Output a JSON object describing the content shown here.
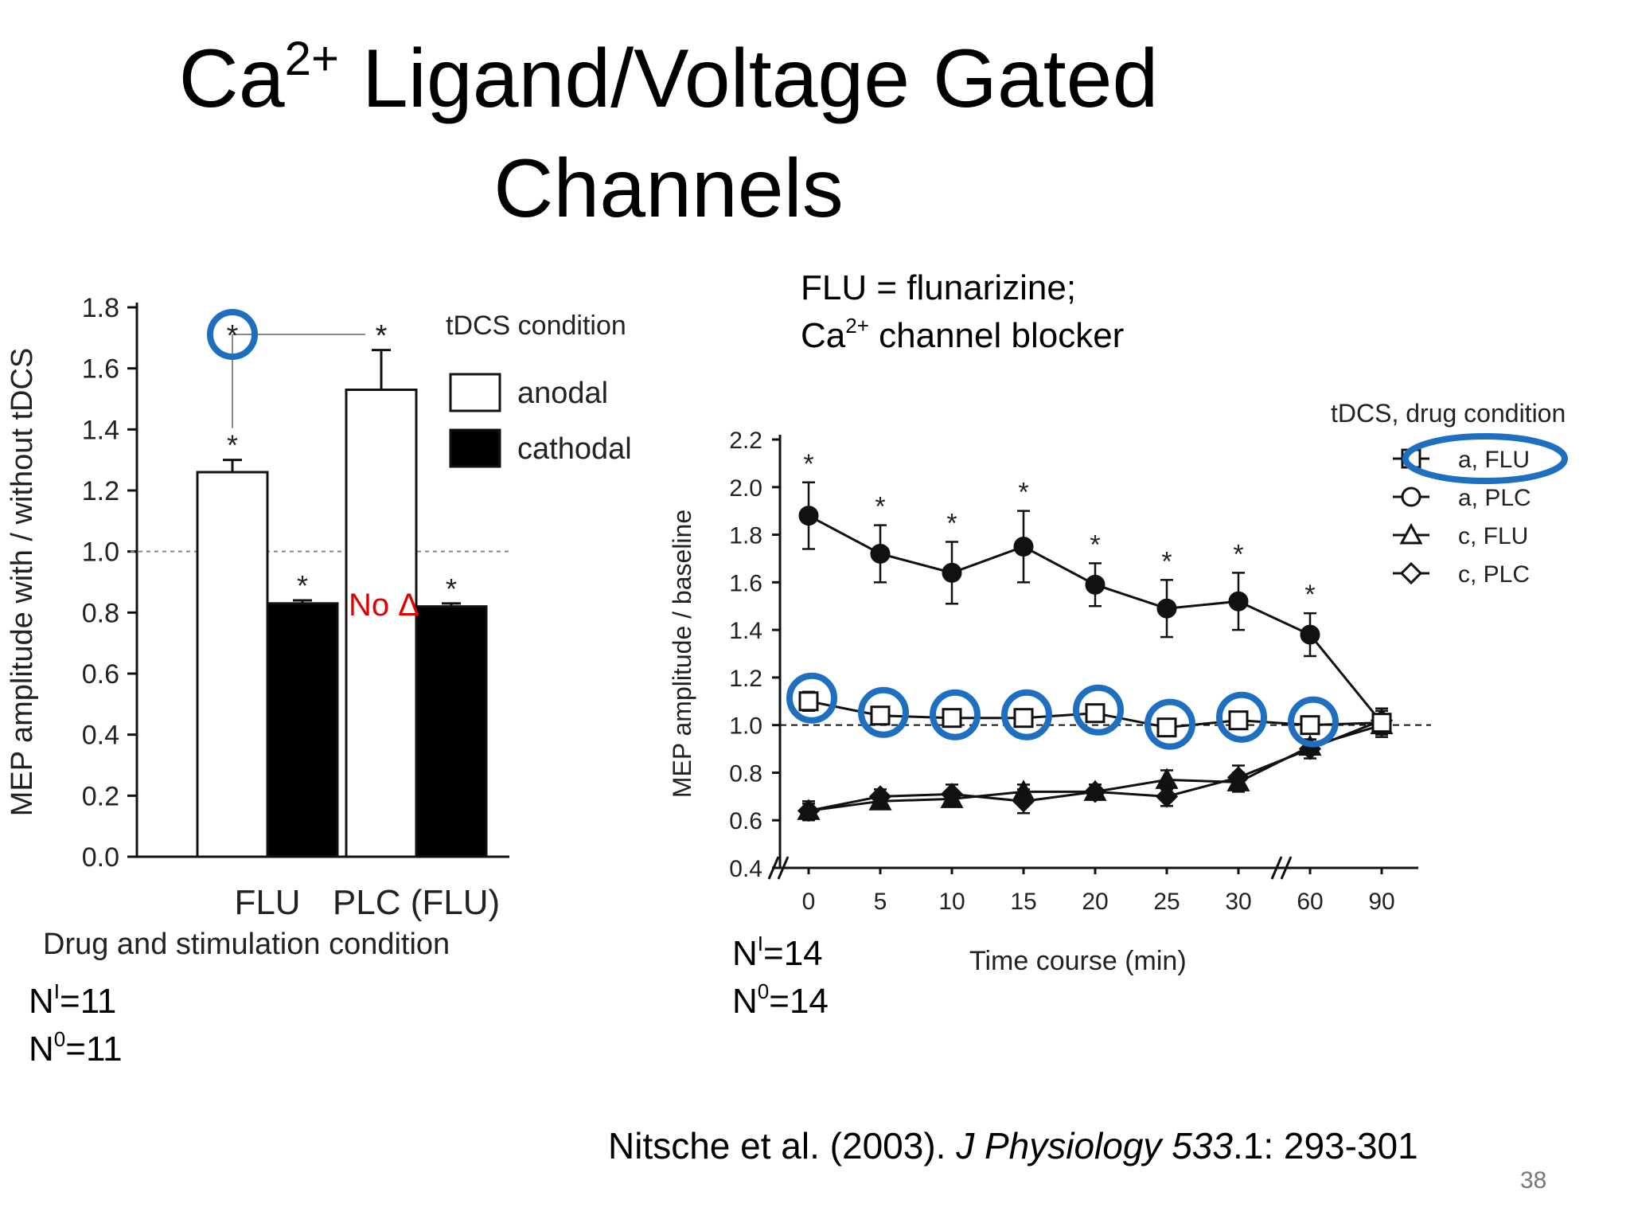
{
  "slide": {
    "title_line1_a": "Ca",
    "title_line1_sup": "2+",
    "title_line1_b": " Ligand/Voltage Gated",
    "title_line2": "Channels",
    "flu_def_line1": "FLU = flunarizine;",
    "flu_def_line2_a": "Ca",
    "flu_def_line2_sup": "2+",
    "flu_def_line2_b": " channel blocker",
    "left_n": {
      "ni_base": "N",
      "ni_sup": "I",
      "ni_val": "=11",
      "n0_base": "N",
      "n0_sup": "0",
      "n0_val": "=11"
    },
    "right_n": {
      "ni_base": "N",
      "ni_sup": "I",
      "ni_val": "=14",
      "n0_base": "N",
      "n0_sup": "0",
      "n0_val": "=14"
    },
    "citation_a": "Nitsche et al. (2003). ",
    "citation_journal": "J Physiology 533",
    "citation_b": ".1: 293-301",
    "page_number": "38",
    "no_change_label": "No Δ",
    "highlight_color": "#1f6fc0",
    "annotation_color": "#e00000"
  },
  "chart_data": [
    {
      "type": "bar",
      "xlabel": "Drug and stimulation condition",
      "ylabel": "MEP amplitude with / without tDCS",
      "ylim": [
        0.0,
        1.8
      ],
      "yticks": [
        "0.0",
        "0.2",
        "0.4",
        "0.6",
        "0.8",
        "1.0",
        "1.2",
        "1.4",
        "1.6",
        "1.8"
      ],
      "categories": [
        "FLU",
        "PLC (FLU)"
      ],
      "legend_title": "tDCS condition",
      "legend_position": "top-right",
      "reference_line": 1.0,
      "series": [
        {
          "name": "anodal",
          "fill": "#ffffff",
          "values": [
            1.26,
            1.53
          ],
          "errors": [
            0.04,
            0.13
          ],
          "significant": [
            true,
            true
          ]
        },
        {
          "name": "cathodal",
          "fill": "#000000",
          "values": [
            0.83,
            0.82
          ],
          "errors": [
            0.01,
            0.01
          ],
          "significant": [
            true,
            true
          ]
        }
      ],
      "bracket_marker": "*",
      "significance_marker": "*"
    },
    {
      "type": "line",
      "xlabel": "Time course (min)",
      "ylabel": "MEP amplitude / baseline",
      "ylim": [
        0.4,
        2.2
      ],
      "yticks": [
        "0.4",
        "0.6",
        "0.8",
        "1.0",
        "1.2",
        "1.4",
        "1.6",
        "1.8",
        "2.0",
        "2.2"
      ],
      "x": [
        "0",
        "5",
        "10",
        "15",
        "20",
        "25",
        "30",
        "60",
        "90"
      ],
      "legend_title": "tDCS, drug condition",
      "legend_position": "top-right",
      "reference_line": 1.0,
      "significance_marker": "*",
      "series": [
        {
          "name": "a, FLU",
          "marker": "square-open",
          "values": [
            1.1,
            1.04,
            1.03,
            1.03,
            1.05,
            0.99,
            1.02,
            1.0,
            1.01
          ],
          "errors": [
            0.04,
            0.03,
            0.03,
            0.03,
            0.03,
            0.03,
            0.03,
            0.03,
            0.03
          ]
        },
        {
          "name": "a, PLC",
          "marker": "circle-filled",
          "values": [
            1.88,
            1.72,
            1.64,
            1.75,
            1.59,
            1.49,
            1.52,
            1.38,
            1.01
          ],
          "errors": [
            0.14,
            0.12,
            0.13,
            0.15,
            0.09,
            0.12,
            0.12,
            0.09,
            0.06
          ],
          "significant": [
            true,
            true,
            true,
            true,
            true,
            true,
            true,
            true,
            false
          ]
        },
        {
          "name": "c, FLU",
          "marker": "triangle-filled",
          "values": [
            0.64,
            0.68,
            0.69,
            0.72,
            0.72,
            0.77,
            0.76,
            0.91,
            1.0
          ],
          "errors": [
            0.03,
            0.03,
            0.03,
            0.03,
            0.03,
            0.04,
            0.04,
            0.03,
            0.04
          ]
        },
        {
          "name": "c, PLC",
          "marker": "diamond-filled",
          "values": [
            0.64,
            0.7,
            0.71,
            0.68,
            0.72,
            0.7,
            0.78,
            0.9,
            1.02
          ],
          "errors": [
            0.04,
            0.03,
            0.04,
            0.05,
            0.03,
            0.04,
            0.05,
            0.04,
            0.04
          ]
        }
      ]
    }
  ]
}
